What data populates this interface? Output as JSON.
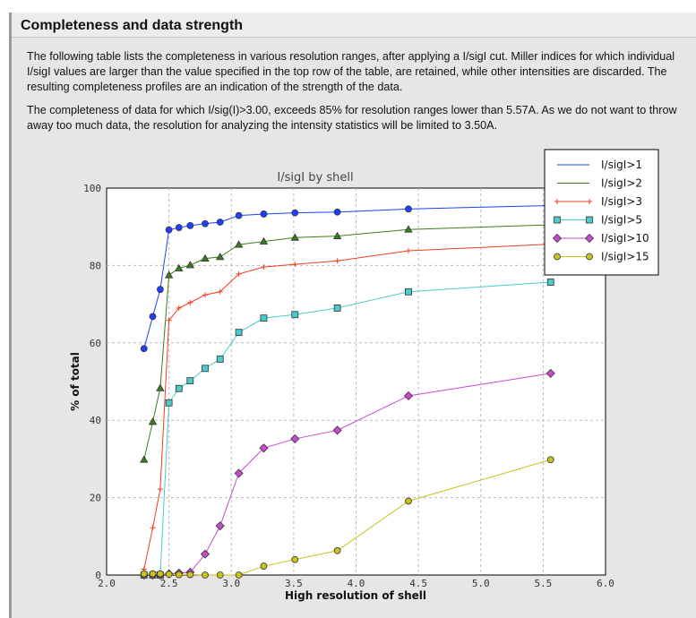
{
  "section": {
    "title": "Completeness and data strength",
    "paragraph1": "The following table lists the completeness in various resolution ranges, after applying a I/sigI cut. Miller indices for which individual I/sigI values are larger than the value specified in the top row of the table, are retained, while other intensities are discarded. The resulting completeness profiles are an indication of the strength of the data.",
    "paragraph2": "The completeness of data for which I/sig(I)>3.00, exceeds  85% for resolution ranges lower than 5.57A. As we do not want to throw away too much data, the resolution for analyzing the intensity statistics will be limited to 3.50A."
  },
  "chart_data": {
    "type": "line",
    "title": "I/sigI by shell",
    "xlabel": "High resolution of shell",
    "ylabel": "% of total",
    "xlim": [
      2.0,
      6.0
    ],
    "ylim": [
      0,
      100
    ],
    "grid": true,
    "legend_placement": "top-right",
    "xticks": [
      "2.0",
      "2.5",
      "3.0",
      "3.5",
      "4.0",
      "4.5",
      "5.0",
      "5.5",
      "6.0"
    ],
    "yticks": [
      "0",
      "20",
      "40",
      "60",
      "80",
      "100"
    ],
    "x": [
      2.3,
      2.37,
      2.43,
      2.5,
      2.58,
      2.67,
      2.79,
      2.91,
      3.06,
      3.26,
      3.51,
      3.85,
      4.42,
      5.56
    ],
    "series": [
      {
        "name": "I/sigI>1",
        "color": "#1f3fff",
        "marker": "circle",
        "values": [
          58.5,
          66.8,
          73.8,
          89.2,
          89.8,
          90.3,
          90.8,
          91.2,
          92.9,
          93.3,
          93.6,
          93.8,
          94.6,
          95.5
        ]
      },
      {
        "name": "I/sigI>2",
        "color": "#3a7d1e",
        "marker": "triangle",
        "values": [
          29.8,
          39.6,
          48.3,
          77.5,
          79.3,
          80.1,
          81.8,
          82.2,
          85.4,
          86.2,
          87.2,
          87.6,
          89.3,
          90.5
        ]
      },
      {
        "name": "I/sigI>3",
        "color": "#f23c1e",
        "marker": "plus",
        "values": [
          1.5,
          12.2,
          22.2,
          65.8,
          69.0,
          70.4,
          72.4,
          73.2,
          77.8,
          79.6,
          80.3,
          81.2,
          83.8,
          85.5
        ]
      },
      {
        "name": "I/sigI>5",
        "color": "#4cc9c9",
        "marker": "square",
        "values": [
          0,
          0,
          0,
          44.5,
          48.2,
          50.2,
          53.4,
          55.8,
          62.7,
          66.4,
          67.3,
          69.0,
          73.2,
          75.7
        ]
      },
      {
        "name": "I/sigI>10",
        "color": "#c84ad0",
        "marker": "diamond",
        "values": [
          0,
          0,
          0,
          0.3,
          0.5,
          0.7,
          5.4,
          12.7,
          26.3,
          32.8,
          35.2,
          37.4,
          46.3,
          52.1
        ]
      },
      {
        "name": "I/sigI>15",
        "color": "#c8c21e",
        "marker": "circle",
        "values": [
          0.3,
          0.3,
          0.3,
          0.2,
          0.1,
          0.1,
          0,
          0,
          0,
          2.3,
          4.0,
          6.3,
          19.1,
          29.8
        ]
      }
    ]
  }
}
